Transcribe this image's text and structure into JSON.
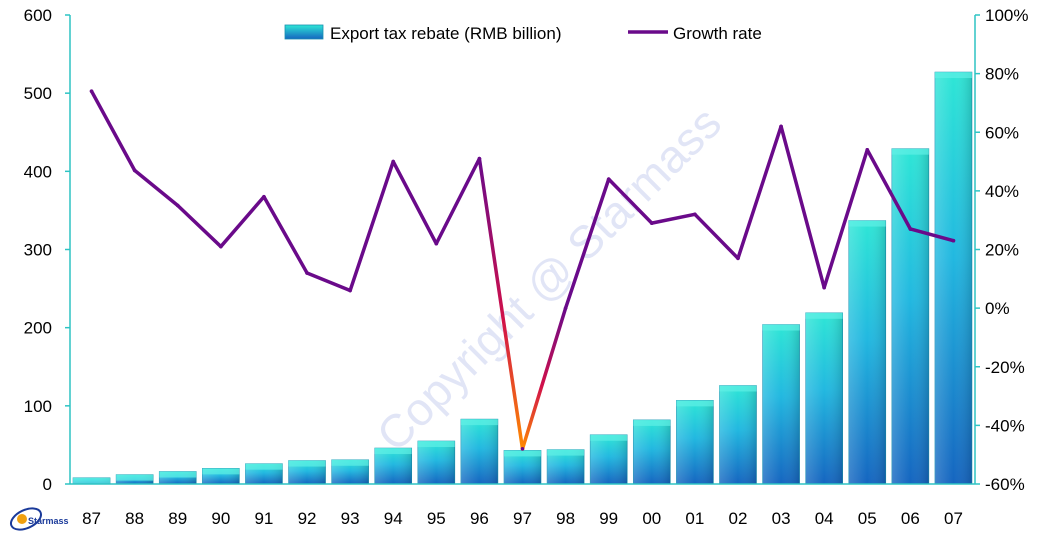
{
  "chart_data": {
    "type": "bar+line",
    "categories": [
      "87",
      "88",
      "89",
      "90",
      "91",
      "92",
      "93",
      "94",
      "95",
      "96",
      "97",
      "98",
      "99",
      "00",
      "01",
      "02",
      "03",
      "04",
      "05",
      "06",
      "07"
    ],
    "series": [
      {
        "name": "Export tax rebate (RMB billion)",
        "type": "bar",
        "axis": "left",
        "values": [
          8,
          12,
          16,
          20,
          26,
          30,
          31,
          46,
          55,
          83,
          43,
          44,
          63,
          82,
          107,
          126,
          204,
          219,
          337,
          429,
          527
        ]
      },
      {
        "name": "Growth rate",
        "type": "line",
        "axis": "right",
        "values": [
          74,
          47,
          35,
          21,
          38,
          12,
          6,
          50,
          22,
          51,
          -48,
          0,
          44,
          29,
          32,
          17,
          62,
          7,
          54,
          27,
          23
        ]
      }
    ],
    "y_left": {
      "min": 0,
      "max": 600,
      "ticks": [
        "0",
        "100",
        "200",
        "300",
        "400",
        "500",
        "600"
      ]
    },
    "y_right": {
      "min": -60,
      "max": 100,
      "ticks": [
        "-60%",
        "-40%",
        "-20%",
        "0%",
        "20%",
        "40%",
        "60%",
        "80%",
        "100%"
      ]
    },
    "grid": false,
    "legend_position": "top-center"
  },
  "watermark": "Copyright @ Starmass",
  "logo": {
    "text": "Starmass"
  },
  "colors": {
    "bar_top": "#2ee6d6",
    "bar_bottom": "#1565c0",
    "line": "#6a0a8a",
    "line_low": "#ff7a00",
    "axis": "#2ec4c4"
  }
}
